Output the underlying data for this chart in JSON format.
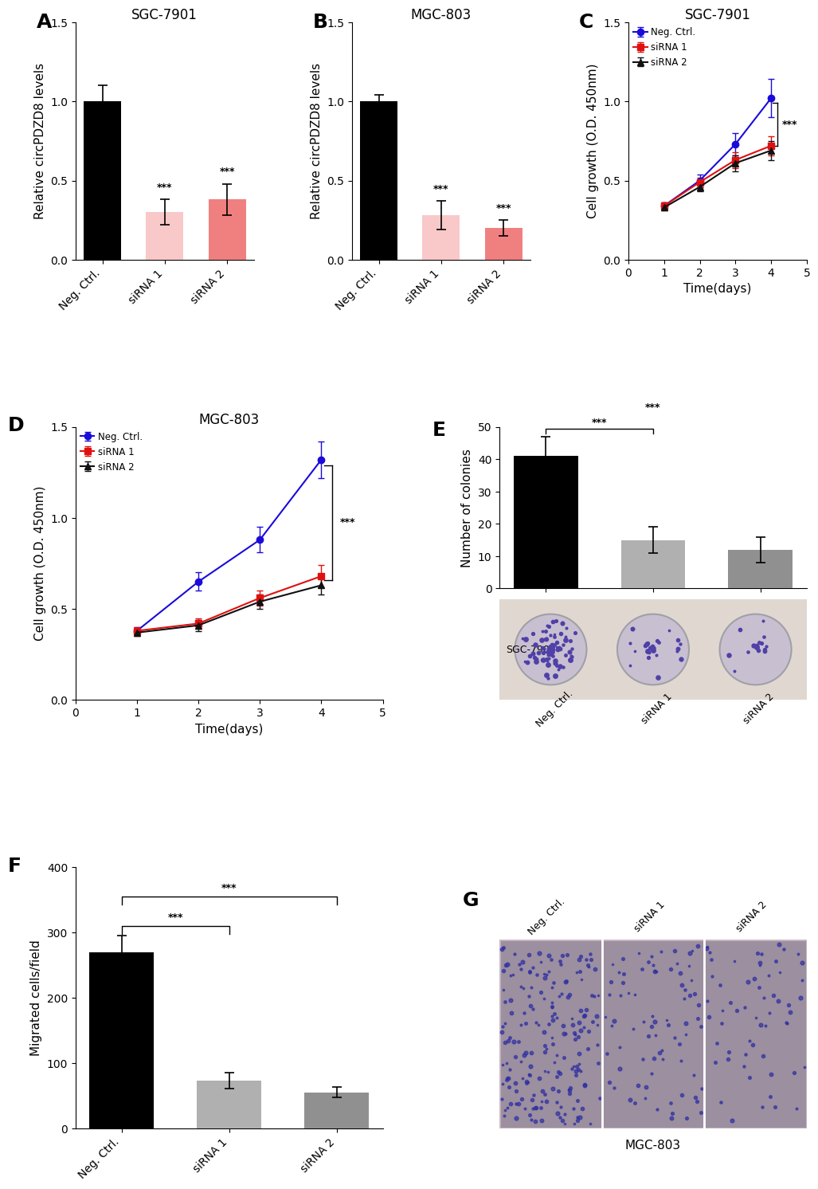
{
  "panel_A": {
    "title": "SGC-7901",
    "categories": [
      "Neg. Ctrl.",
      "siRNA 1",
      "siRNA 2"
    ],
    "values": [
      1.0,
      0.3,
      0.38
    ],
    "errors": [
      0.1,
      0.08,
      0.1
    ],
    "colors": [
      "#000000",
      "#f9c8c8",
      "#f08080"
    ],
    "ylabel": "Relative circPDZD8 levels",
    "ylim": [
      0,
      1.5
    ],
    "yticks": [
      0.0,
      0.5,
      1.0,
      1.5
    ],
    "sig_labels": [
      "",
      "***",
      "***"
    ]
  },
  "panel_B": {
    "title": "MGC-803",
    "categories": [
      "Neg. Ctrl.",
      "siRNA 1",
      "siRNA 2"
    ],
    "values": [
      1.0,
      0.28,
      0.2
    ],
    "errors": [
      0.04,
      0.09,
      0.05
    ],
    "colors": [
      "#000000",
      "#f9c8c8",
      "#f08080"
    ],
    "ylabel": "Relative circPDZD8 levels",
    "ylim": [
      0,
      1.5
    ],
    "yticks": [
      0.0,
      0.5,
      1.0,
      1.5
    ],
    "sig_labels": [
      "",
      "***",
      "***"
    ]
  },
  "panel_C": {
    "title": "SGC-7901",
    "xlabel": "Time(days)",
    "ylabel": "Cell growth (O.D. 450nm)",
    "ylim": [
      0.0,
      1.5
    ],
    "yticks": [
      0.0,
      0.5,
      1.0,
      1.5
    ],
    "xlim": [
      0,
      5
    ],
    "xticks": [
      0,
      1,
      2,
      3,
      4,
      5
    ],
    "days": [
      1,
      2,
      3,
      4
    ],
    "neg_ctrl": [
      0.34,
      0.5,
      0.73,
      1.02
    ],
    "neg_ctrl_err": [
      0.02,
      0.04,
      0.07,
      0.12
    ],
    "siRNA1": [
      0.34,
      0.49,
      0.63,
      0.72
    ],
    "siRNA1_err": [
      0.02,
      0.03,
      0.05,
      0.06
    ],
    "siRNA2": [
      0.33,
      0.46,
      0.61,
      0.69
    ],
    "siRNA2_err": [
      0.02,
      0.03,
      0.05,
      0.06
    ],
    "colors": [
      "#1a0bdb",
      "#e01010",
      "#111111"
    ],
    "markers": [
      "o",
      "s",
      "^"
    ],
    "legend_labels": [
      "Neg. Ctrl.",
      "siRNA 1",
      "siRNA 2"
    ]
  },
  "panel_D": {
    "title": "MGC-803",
    "xlabel": "Time(days)",
    "ylabel": "Cell growth (O.D. 450nm)",
    "ylim": [
      0.0,
      1.5
    ],
    "yticks": [
      0.0,
      0.5,
      1.0,
      1.5
    ],
    "xlim": [
      0,
      5
    ],
    "xticks": [
      0,
      1,
      2,
      3,
      4,
      5
    ],
    "days": [
      1,
      2,
      3,
      4
    ],
    "neg_ctrl": [
      0.38,
      0.65,
      0.88,
      1.32
    ],
    "neg_ctrl_err": [
      0.02,
      0.05,
      0.07,
      0.1
    ],
    "siRNA1": [
      0.38,
      0.42,
      0.56,
      0.68
    ],
    "siRNA1_err": [
      0.02,
      0.03,
      0.04,
      0.06
    ],
    "siRNA2": [
      0.37,
      0.41,
      0.54,
      0.63
    ],
    "siRNA2_err": [
      0.02,
      0.03,
      0.04,
      0.05
    ],
    "colors": [
      "#1a0bdb",
      "#e01010",
      "#111111"
    ],
    "markers": [
      "o",
      "s",
      "^"
    ],
    "legend_labels": [
      "Neg. Ctrl.",
      "siRNA 1",
      "siRNA 2"
    ]
  },
  "panel_E": {
    "title": "SGC-7901",
    "categories": [
      "Neg. Ctrl.",
      "siRNA 1",
      "siRNA 2"
    ],
    "values": [
      41,
      15,
      12
    ],
    "errors": [
      6,
      4,
      4
    ],
    "colors": [
      "#000000",
      "#b0b0b0",
      "#909090"
    ],
    "ylabel": "Number of colonies",
    "ylim": [
      0,
      50
    ],
    "yticks": [
      0,
      10,
      20,
      30,
      40,
      50
    ]
  },
  "panel_F": {
    "categories": [
      "Neg. Ctrl.",
      "siRNA 1",
      "siRNA 2"
    ],
    "values": [
      270,
      73,
      55
    ],
    "errors": [
      25,
      12,
      8
    ],
    "colors": [
      "#000000",
      "#b0b0b0",
      "#909090"
    ],
    "ylabel": "Migrated cells/field",
    "ylim": [
      0,
      400
    ],
    "yticks": [
      0,
      100,
      200,
      300,
      400
    ]
  },
  "panel_G": {
    "title": "MGC-803",
    "labels": [
      "Neg. Ctrl.",
      "siRNA 1",
      "siRNA 2"
    ],
    "img_color": "#9b8fa0",
    "divider_color": "#c8b8c0"
  },
  "panel_E_img": {
    "title": "SGC-7901",
    "img_color": "#e8e0d8",
    "plate_color": "#d0c8d0"
  },
  "bg_color": "#ffffff",
  "label_fontsize": 18,
  "title_fontsize": 12,
  "tick_fontsize": 10,
  "axis_label_fontsize": 11
}
